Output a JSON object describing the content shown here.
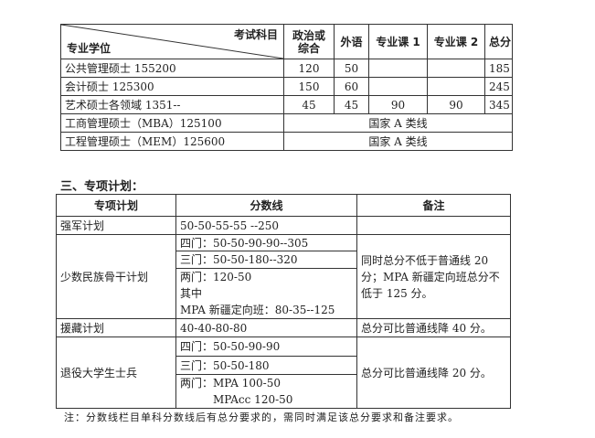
{
  "table1": {
    "header": {
      "subject": "考试科目",
      "degree": "专业学位",
      "cols": [
        "政治或\n综合",
        "外语",
        "专业课 1",
        "专业课 2",
        "总分"
      ]
    },
    "rows": [
      {
        "name": "公共管理硕士 155200",
        "v": [
          "120",
          "50",
          "",
          "",
          "185"
        ]
      },
      {
        "name": "会计硕士 125300",
        "v": [
          "150",
          "60",
          "",
          "",
          "245"
        ]
      },
      {
        "name": "艺术硕士各领域 1351--",
        "v": [
          "45",
          "45",
          "90",
          "90",
          "345"
        ]
      },
      {
        "name": "工商管理硕士（MBA）125100",
        "merged": "国家 A 类线"
      },
      {
        "name": "工程管理硕士（MEM）125600",
        "merged": "国家 A 类线"
      }
    ]
  },
  "section_title": "三、专项计划：",
  "table2": {
    "headers": [
      "专项计划",
      "分数线",
      "备注"
    ],
    "r1": {
      "plan": "强军计划",
      "score": "50-50-55-55 --250",
      "note": ""
    },
    "r2": {
      "plan": "少数民族骨干计划",
      "s1": "四门：50-50-90-90--305",
      "s2": "三门：50-50-180--320",
      "s3a": "两门：120-50",
      "s3b": "其中",
      "s3c": "MPA 新疆定向班：80-35--125",
      "note": "同时总分不低于普通线 20 分；MPA 新疆定向班总分不低于 125 分。"
    },
    "r3": {
      "plan": "援藏计划",
      "score": "40-40-80-80",
      "note": "总分可比普通线降 40 分。"
    },
    "r4": {
      "plan": "退役大学生士兵",
      "s1": "四门：50-50-90-90",
      "s2": "三门：50-50-180",
      "s3a": "两门：MPA 100-50",
      "s3b": "MPAcc 120-50",
      "note": "总分可比普通线降 20 分。"
    }
  },
  "footnote": "注：分数线栏目单科分数线后有总分要求的，需同时满足该总分要求和备注要求。"
}
